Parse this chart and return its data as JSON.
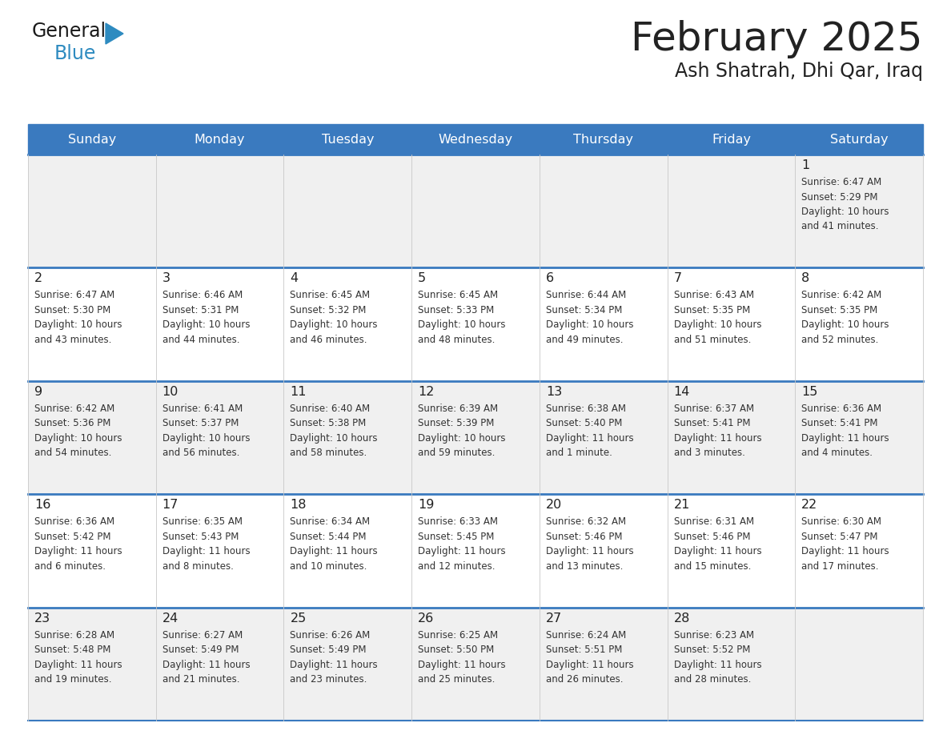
{
  "title": "February 2025",
  "subtitle": "Ash Shatrah, Dhi Qar, Iraq",
  "header_color": "#3a7abf",
  "header_text_color": "#ffffff",
  "day_names": [
    "Sunday",
    "Monday",
    "Tuesday",
    "Wednesday",
    "Thursday",
    "Friday",
    "Saturday"
  ],
  "days": [
    {
      "day": 1,
      "col": 6,
      "row": 0,
      "sunrise": "6:47 AM",
      "sunset": "5:29 PM",
      "daylight_hours": 10,
      "daylight_minutes": 41
    },
    {
      "day": 2,
      "col": 0,
      "row": 1,
      "sunrise": "6:47 AM",
      "sunset": "5:30 PM",
      "daylight_hours": 10,
      "daylight_minutes": 43
    },
    {
      "day": 3,
      "col": 1,
      "row": 1,
      "sunrise": "6:46 AM",
      "sunset": "5:31 PM",
      "daylight_hours": 10,
      "daylight_minutes": 44
    },
    {
      "day": 4,
      "col": 2,
      "row": 1,
      "sunrise": "6:45 AM",
      "sunset": "5:32 PM",
      "daylight_hours": 10,
      "daylight_minutes": 46
    },
    {
      "day": 5,
      "col": 3,
      "row": 1,
      "sunrise": "6:45 AM",
      "sunset": "5:33 PM",
      "daylight_hours": 10,
      "daylight_minutes": 48
    },
    {
      "day": 6,
      "col": 4,
      "row": 1,
      "sunrise": "6:44 AM",
      "sunset": "5:34 PM",
      "daylight_hours": 10,
      "daylight_minutes": 49
    },
    {
      "day": 7,
      "col": 5,
      "row": 1,
      "sunrise": "6:43 AM",
      "sunset": "5:35 PM",
      "daylight_hours": 10,
      "daylight_minutes": 51
    },
    {
      "day": 8,
      "col": 6,
      "row": 1,
      "sunrise": "6:42 AM",
      "sunset": "5:35 PM",
      "daylight_hours": 10,
      "daylight_minutes": 52
    },
    {
      "day": 9,
      "col": 0,
      "row": 2,
      "sunrise": "6:42 AM",
      "sunset": "5:36 PM",
      "daylight_hours": 10,
      "daylight_minutes": 54
    },
    {
      "day": 10,
      "col": 1,
      "row": 2,
      "sunrise": "6:41 AM",
      "sunset": "5:37 PM",
      "daylight_hours": 10,
      "daylight_minutes": 56
    },
    {
      "day": 11,
      "col": 2,
      "row": 2,
      "sunrise": "6:40 AM",
      "sunset": "5:38 PM",
      "daylight_hours": 10,
      "daylight_minutes": 58
    },
    {
      "day": 12,
      "col": 3,
      "row": 2,
      "sunrise": "6:39 AM",
      "sunset": "5:39 PM",
      "daylight_hours": 10,
      "daylight_minutes": 59
    },
    {
      "day": 13,
      "col": 4,
      "row": 2,
      "sunrise": "6:38 AM",
      "sunset": "5:40 PM",
      "daylight_hours": 11,
      "daylight_minutes": 1
    },
    {
      "day": 14,
      "col": 5,
      "row": 2,
      "sunrise": "6:37 AM",
      "sunset": "5:41 PM",
      "daylight_hours": 11,
      "daylight_minutes": 3
    },
    {
      "day": 15,
      "col": 6,
      "row": 2,
      "sunrise": "6:36 AM",
      "sunset": "5:41 PM",
      "daylight_hours": 11,
      "daylight_minutes": 4
    },
    {
      "day": 16,
      "col": 0,
      "row": 3,
      "sunrise": "6:36 AM",
      "sunset": "5:42 PM",
      "daylight_hours": 11,
      "daylight_minutes": 6
    },
    {
      "day": 17,
      "col": 1,
      "row": 3,
      "sunrise": "6:35 AM",
      "sunset": "5:43 PM",
      "daylight_hours": 11,
      "daylight_minutes": 8
    },
    {
      "day": 18,
      "col": 2,
      "row": 3,
      "sunrise": "6:34 AM",
      "sunset": "5:44 PM",
      "daylight_hours": 11,
      "daylight_minutes": 10
    },
    {
      "day": 19,
      "col": 3,
      "row": 3,
      "sunrise": "6:33 AM",
      "sunset": "5:45 PM",
      "daylight_hours": 11,
      "daylight_minutes": 12
    },
    {
      "day": 20,
      "col": 4,
      "row": 3,
      "sunrise": "6:32 AM",
      "sunset": "5:46 PM",
      "daylight_hours": 11,
      "daylight_minutes": 13
    },
    {
      "day": 21,
      "col": 5,
      "row": 3,
      "sunrise": "6:31 AM",
      "sunset": "5:46 PM",
      "daylight_hours": 11,
      "daylight_minutes": 15
    },
    {
      "day": 22,
      "col": 6,
      "row": 3,
      "sunrise": "6:30 AM",
      "sunset": "5:47 PM",
      "daylight_hours": 11,
      "daylight_minutes": 17
    },
    {
      "day": 23,
      "col": 0,
      "row": 4,
      "sunrise": "6:28 AM",
      "sunset": "5:48 PM",
      "daylight_hours": 11,
      "daylight_minutes": 19
    },
    {
      "day": 24,
      "col": 1,
      "row": 4,
      "sunrise": "6:27 AM",
      "sunset": "5:49 PM",
      "daylight_hours": 11,
      "daylight_minutes": 21
    },
    {
      "day": 25,
      "col": 2,
      "row": 4,
      "sunrise": "6:26 AM",
      "sunset": "5:49 PM",
      "daylight_hours": 11,
      "daylight_minutes": 23
    },
    {
      "day": 26,
      "col": 3,
      "row": 4,
      "sunrise": "6:25 AM",
      "sunset": "5:50 PM",
      "daylight_hours": 11,
      "daylight_minutes": 25
    },
    {
      "day": 27,
      "col": 4,
      "row": 4,
      "sunrise": "6:24 AM",
      "sunset": "5:51 PM",
      "daylight_hours": 11,
      "daylight_minutes": 26
    },
    {
      "day": 28,
      "col": 5,
      "row": 4,
      "sunrise": "6:23 AM",
      "sunset": "5:52 PM",
      "daylight_hours": 11,
      "daylight_minutes": 28
    }
  ],
  "num_rows": 5,
  "num_cols": 7,
  "bg_color": "#ffffff",
  "cell_bg_even": "#f0f0f0",
  "cell_bg_odd": "#ffffff",
  "separator_color": "#3a7abf",
  "grid_line_color": "#c8c8c8",
  "text_color": "#333333",
  "day_number_color": "#222222",
  "logo_general_color": "#1a1a1a",
  "logo_blue_color": "#2e8bc0",
  "logo_triangle_color": "#2e8bc0"
}
